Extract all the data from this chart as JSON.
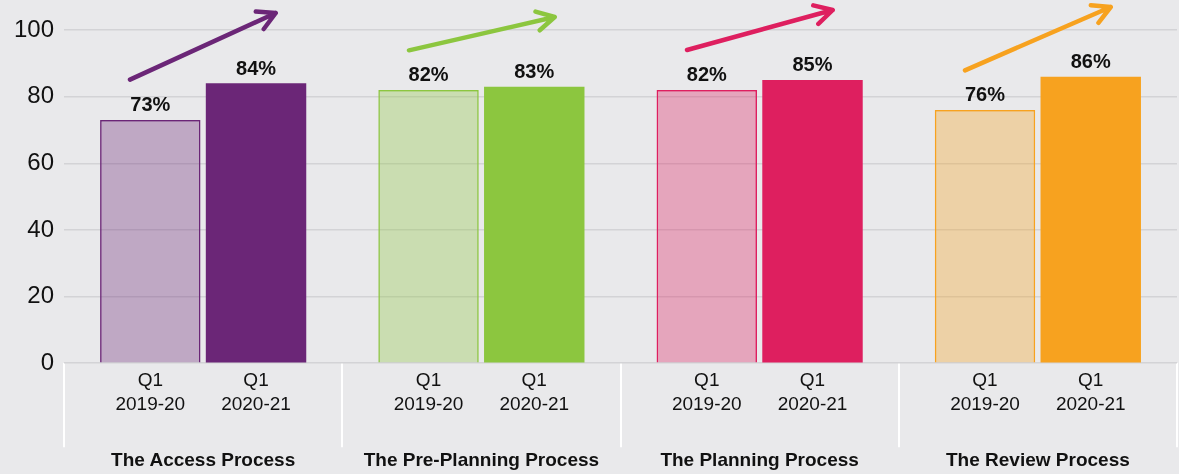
{
  "chart_data": {
    "type": "bar",
    "categories": [
      "The Access Process",
      "The Pre-Planning Process",
      "The Planning Process",
      "The Review Process"
    ],
    "series": [
      {
        "name": "Q1 2019-20",
        "colors": [
          "#6b2677",
          "#8cc63f",
          "#de1f5f",
          "#f7a21f"
        ],
        "values": [
          73,
          82,
          82,
          76
        ],
        "value_labels": [
          "73%",
          "82%",
          "82%",
          "76%"
        ]
      },
      {
        "name": "Q1 2020-21",
        "colors": [
          "#6b2677",
          "#8cc63f",
          "#de1f5f",
          "#f7a21f"
        ],
        "values": [
          84,
          83,
          85,
          86
        ],
        "value_labels": [
          "84%",
          "83%",
          "85%",
          "86%"
        ]
      }
    ],
    "ylim": [
      0,
      100
    ],
    "yticks": [
      0,
      20,
      40,
      60,
      80,
      100
    ],
    "grid": "y",
    "legend": false
  }
}
